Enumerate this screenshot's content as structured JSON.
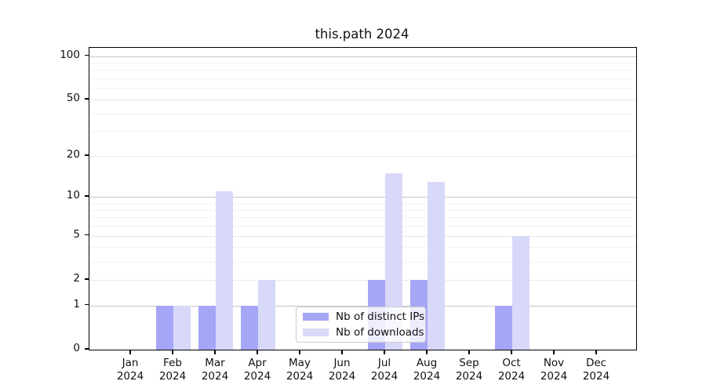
{
  "title": "this.path 2024",
  "chart_data": {
    "type": "bar",
    "title": "this.path 2024",
    "categories": [
      "Jan",
      "Feb",
      "Mar",
      "Apr",
      "May",
      "Jun",
      "Jul",
      "Aug",
      "Sep",
      "Oct",
      "Nov",
      "Dec"
    ],
    "year_label": "2024",
    "series": [
      {
        "name": "Nb of distinct IPs",
        "color": "#a6a6f7",
        "values": [
          0,
          1,
          1,
          1,
          0,
          0,
          2,
          2,
          0,
          1,
          0,
          0
        ]
      },
      {
        "name": "Nb of downloads",
        "color": "#d8d8f9",
        "values": [
          0,
          1,
          11,
          2,
          0,
          0,
          15,
          13,
          0,
          5,
          0,
          0
        ]
      }
    ],
    "scale": "log1p",
    "y_major_ticks": [
      0,
      1,
      2,
      5,
      10,
      20,
      50,
      100
    ],
    "y_minor_ticks": [
      3,
      4,
      6,
      7,
      8,
      9,
      30,
      40,
      60,
      70,
      80,
      90
    ],
    "ylim": [
      0,
      114
    ],
    "grid": "horizontal",
    "legend_position": "bottom-center",
    "colors": {
      "grid_power10": "#c6c6c6",
      "grid_mid": "#e9e9e9",
      "grid_minor": "#f2f2f2",
      "axis": "#000000",
      "text": "#111111"
    }
  }
}
